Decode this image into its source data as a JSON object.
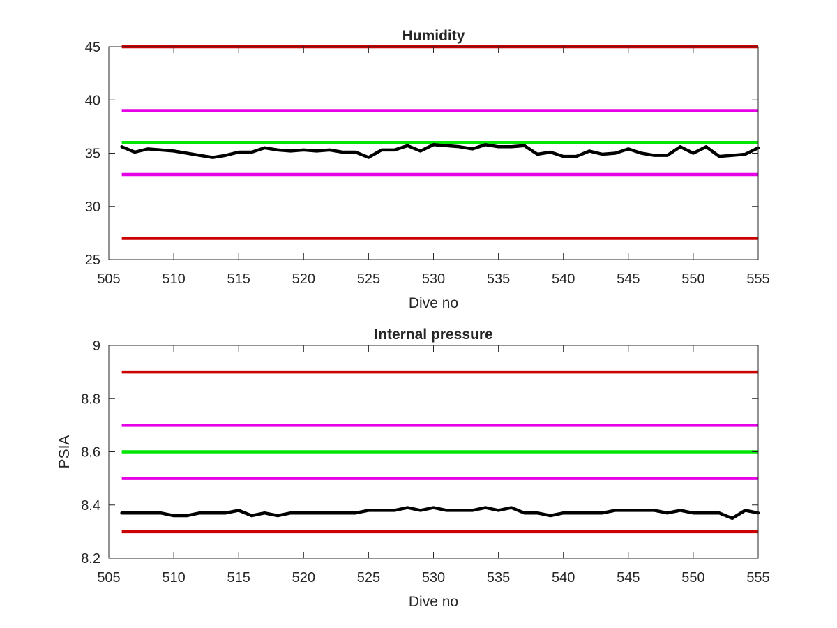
{
  "chart_data": [
    {
      "type": "line",
      "title": "Humidity",
      "xlabel": "Dive no",
      "ylabel": "",
      "xlim": [
        505,
        555
      ],
      "ylim": [
        25,
        45
      ],
      "xticks": [
        505,
        510,
        515,
        520,
        525,
        530,
        535,
        540,
        545,
        550,
        555
      ],
      "yticks": [
        25,
        30,
        35,
        40,
        45
      ],
      "grid": false,
      "thresholds": [
        {
          "value": 45,
          "color": "#cc0000"
        },
        {
          "value": 39,
          "color": "#e600e6"
        },
        {
          "value": 36,
          "color": "#00e600"
        },
        {
          "value": 33,
          "color": "#e600e6"
        },
        {
          "value": 27,
          "color": "#cc0000"
        }
      ],
      "series": [
        {
          "color": "#000000",
          "x": [
            506,
            507,
            508,
            509,
            510,
            511,
            512,
            513,
            514,
            515,
            516,
            517,
            518,
            519,
            520,
            521,
            522,
            523,
            524,
            525,
            526,
            527,
            528,
            529,
            530,
            531,
            532,
            533,
            534,
            535,
            536,
            537,
            538,
            539,
            540,
            541,
            542,
            543,
            544,
            545,
            546,
            547,
            548,
            549,
            550,
            551,
            552,
            553,
            554,
            555
          ],
          "y": [
            35.6,
            35.1,
            35.4,
            35.3,
            35.2,
            35.0,
            34.8,
            34.6,
            34.8,
            35.1,
            35.1,
            35.5,
            35.3,
            35.2,
            35.3,
            35.2,
            35.3,
            35.1,
            35.1,
            34.6,
            35.3,
            35.3,
            35.7,
            35.2,
            35.8,
            35.7,
            35.6,
            35.4,
            35.8,
            35.6,
            35.6,
            35.7,
            34.9,
            35.1,
            34.7,
            34.7,
            35.2,
            34.9,
            35.0,
            35.4,
            35.0,
            34.8,
            34.8,
            35.6,
            35.0,
            35.6,
            34.7,
            34.8,
            34.9,
            35.5
          ]
        }
      ]
    },
    {
      "type": "line",
      "title": "Internal pressure",
      "xlabel": "Dive no",
      "ylabel": "PSIA",
      "xlim": [
        505,
        555
      ],
      "ylim": [
        8.2,
        9
      ],
      "xticks": [
        505,
        510,
        515,
        520,
        525,
        530,
        535,
        540,
        545,
        550,
        555
      ],
      "yticks": [
        8.2,
        8.4,
        8.6,
        8.8,
        9
      ],
      "ytick_labels": [
        "8.2",
        "8.4",
        "8.6",
        "8.8",
        "9"
      ],
      "grid": false,
      "thresholds": [
        {
          "value": 8.9,
          "color": "#cc0000"
        },
        {
          "value": 8.7,
          "color": "#e600e6"
        },
        {
          "value": 8.6,
          "color": "#00e600"
        },
        {
          "value": 8.5,
          "color": "#e600e6"
        },
        {
          "value": 8.3,
          "color": "#cc0000"
        }
      ],
      "series": [
        {
          "color": "#000000",
          "x": [
            506,
            507,
            508,
            509,
            510,
            511,
            512,
            513,
            514,
            515,
            516,
            517,
            518,
            519,
            520,
            521,
            522,
            523,
            524,
            525,
            526,
            527,
            528,
            529,
            530,
            531,
            532,
            533,
            534,
            535,
            536,
            537,
            538,
            539,
            540,
            541,
            542,
            543,
            544,
            545,
            546,
            547,
            548,
            549,
            550,
            551,
            552,
            553,
            554,
            555
          ],
          "y": [
            8.37,
            8.37,
            8.37,
            8.37,
            8.36,
            8.36,
            8.37,
            8.37,
            8.37,
            8.38,
            8.36,
            8.37,
            8.36,
            8.37,
            8.37,
            8.37,
            8.37,
            8.37,
            8.37,
            8.38,
            8.38,
            8.38,
            8.39,
            8.38,
            8.39,
            8.38,
            8.38,
            8.38,
            8.39,
            8.38,
            8.39,
            8.37,
            8.37,
            8.36,
            8.37,
            8.37,
            8.37,
            8.37,
            8.38,
            8.38,
            8.38,
            8.38,
            8.37,
            8.38,
            8.37,
            8.37,
            8.37,
            8.35,
            8.38,
            8.37
          ]
        }
      ]
    }
  ]
}
